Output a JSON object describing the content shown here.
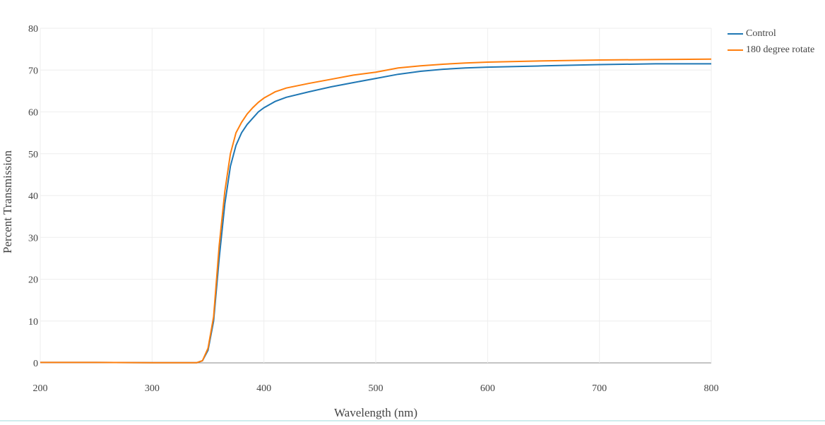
{
  "chart_data": {
    "type": "line",
    "x_label": "Wavelength (nm)",
    "y_label": "Percent Transmission",
    "x": [
      200,
      250,
      300,
      340,
      345,
      350,
      355,
      360,
      365,
      370,
      375,
      380,
      385,
      390,
      395,
      400,
      410,
      420,
      440,
      460,
      480,
      500,
      520,
      540,
      560,
      580,
      600,
      650,
      700,
      750,
      800
    ],
    "series": [
      {
        "name": "Control",
        "color": "#1f77b4",
        "values": [
          0.1,
          0.1,
          0.05,
          0.05,
          0.5,
          3,
          10,
          25,
          38,
          47,
          52,
          55,
          57,
          58.5,
          60,
          61,
          62.5,
          63.5,
          64.8,
          66,
          67,
          68,
          69,
          69.7,
          70.2,
          70.5,
          70.7,
          71,
          71.3,
          71.5,
          71.5
        ]
      },
      {
        "name": "180 degree rotate",
        "color": "#ff7f0e",
        "values": [
          0.1,
          0.1,
          0.05,
          0.05,
          0.5,
          3.5,
          11,
          28,
          41,
          50,
          55,
          57.5,
          59.5,
          61,
          62.3,
          63.3,
          64.8,
          65.7,
          66.8,
          67.8,
          68.8,
          69.5,
          70.5,
          71,
          71.4,
          71.7,
          71.9,
          72.2,
          72.4,
          72.5,
          72.6
        ]
      }
    ],
    "xlim": [
      200,
      800
    ],
    "xticks": [
      200,
      300,
      400,
      500,
      600,
      700,
      800
    ],
    "ylim": [
      0,
      80
    ],
    "yticks": [
      0,
      10,
      20,
      30,
      40,
      50,
      60,
      70,
      80
    ],
    "grid": true,
    "legend": "top-right"
  }
}
